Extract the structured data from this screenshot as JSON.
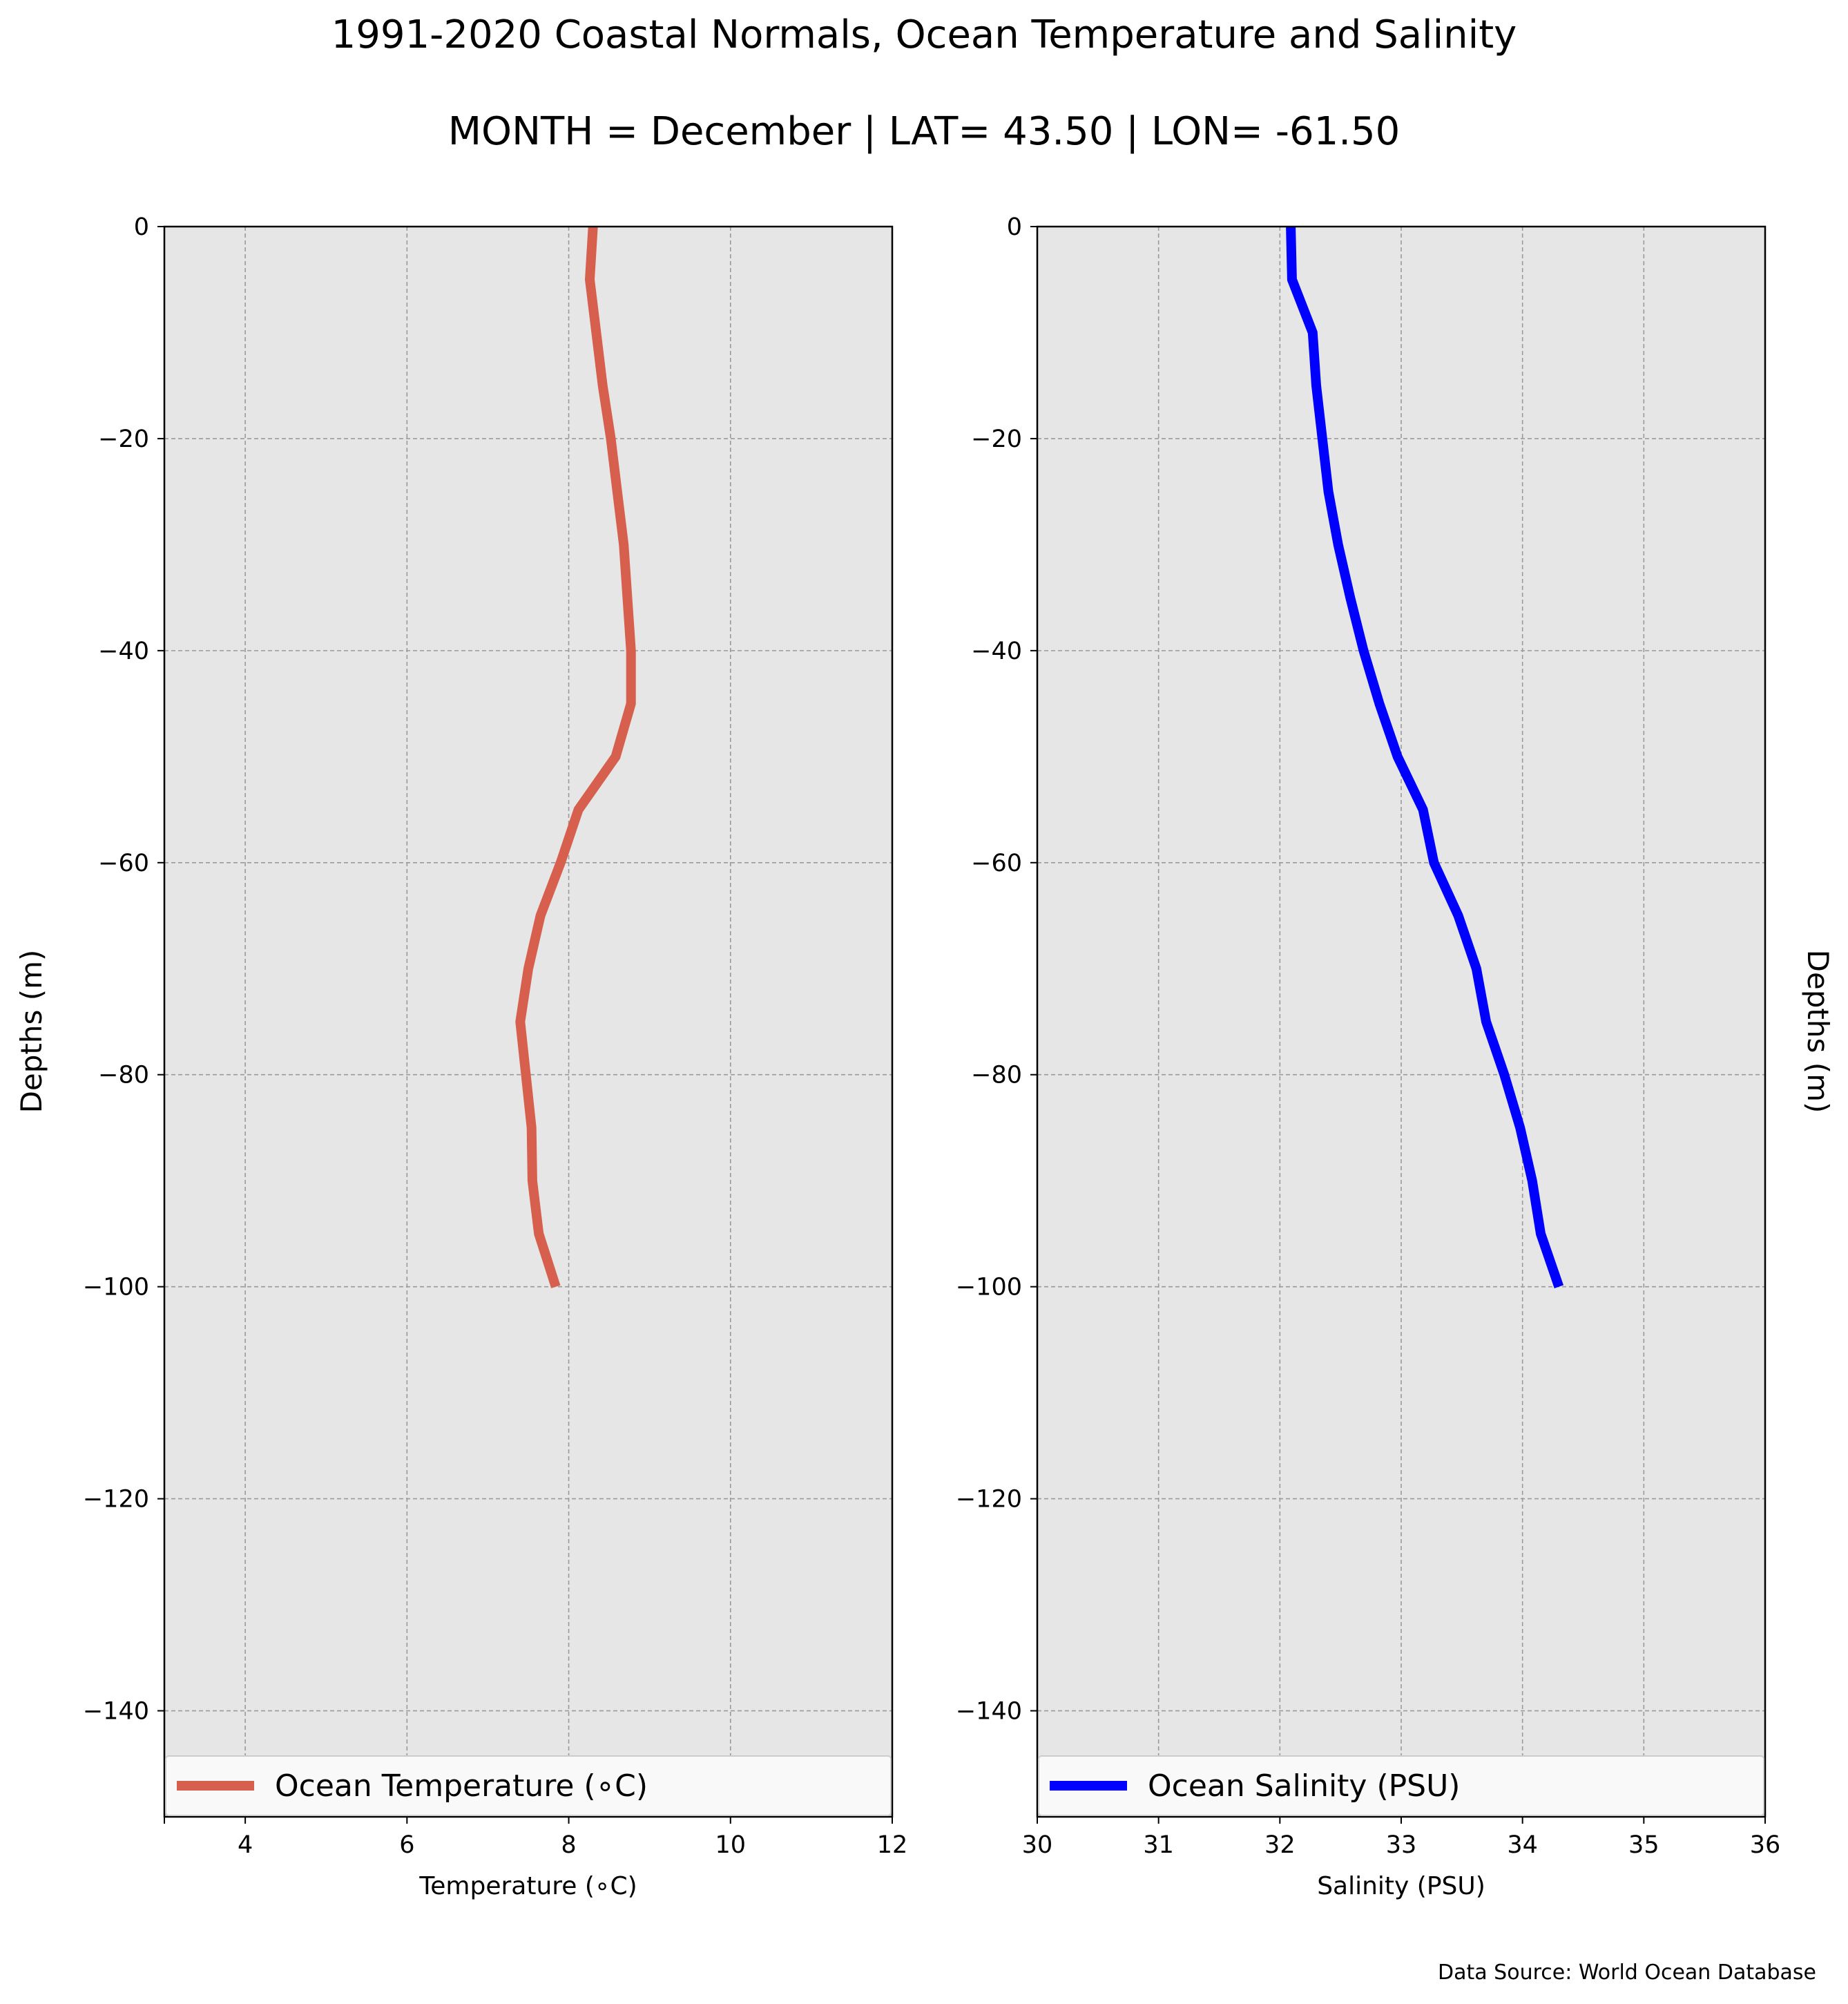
{
  "title": "1991-2020 Coastal Normals, Ocean Temperature and Salinity",
  "subtitle": "MONTH = December | LAT= 43.50 | LON= -61.50",
  "source": "Data Source: World Ocean Database",
  "chart_data": [
    {
      "type": "line",
      "xlabel": "Temperature ($^\\circ$C)",
      "xlabel_display": "Temperature (∘C)",
      "ylabel": "Depths (m)",
      "xlim": [
        3,
        12
      ],
      "ylim": [
        -150,
        0
      ],
      "xticks": [
        4,
        6,
        8,
        10,
        12
      ],
      "yticks": [
        0,
        -20,
        -40,
        -60,
        -80,
        -100,
        -120,
        -140
      ],
      "ytick_labels": [
        "0",
        "−20",
        "−40",
        "−60",
        "−80",
        "−100",
        "−120",
        "−140"
      ],
      "grid": true,
      "facecolor": "#e6e6e6",
      "legend_position": "lower center",
      "series": [
        {
          "name": "Ocean Temperature (∘C)",
          "color": "#d6604d",
          "x": [
            8.3,
            8.26,
            8.34,
            8.42,
            8.52,
            8.6,
            8.68,
            8.77,
            8.77,
            8.58,
            8.12,
            7.9,
            7.65,
            7.5,
            7.4,
            7.47,
            7.54,
            7.55,
            7.63,
            7.84
          ],
          "y": [
            0,
            -5,
            -10,
            -15,
            -20,
            -25,
            -30,
            -40,
            -45,
            -50,
            -55,
            -60,
            -65,
            -70,
            -75,
            -80,
            -85,
            -90,
            -95,
            -100
          ]
        }
      ]
    },
    {
      "type": "line",
      "xlabel": "Salinity (PSU)",
      "ylabel": "Depths (m)",
      "xlim": [
        30,
        36
      ],
      "ylim": [
        -150,
        0
      ],
      "xticks": [
        30,
        31,
        32,
        33,
        34,
        35,
        36
      ],
      "yticks": [
        0,
        -20,
        -40,
        -60,
        -80,
        -100,
        -120,
        -140
      ],
      "ytick_labels": [
        "0",
        "−20",
        "−40",
        "−60",
        "−80",
        "−100",
        "−120",
        "−140"
      ],
      "grid": true,
      "facecolor": "#e6e6e6",
      "legend_position": "lower center",
      "series": [
        {
          "name": "Ocean Salinity (PSU)",
          "color": "#0000ff",
          "x": [
            32.09,
            32.1,
            32.27,
            32.3,
            32.35,
            32.4,
            32.48,
            32.58,
            32.69,
            32.82,
            32.97,
            33.18,
            33.27,
            33.47,
            33.62,
            33.7,
            33.85,
            33.98,
            34.08,
            34.15,
            34.3
          ],
          "y": [
            0,
            -5,
            -10,
            -15,
            -20,
            -25,
            -30,
            -35,
            -40,
            -45,
            -50,
            -55,
            -60,
            -65,
            -70,
            -75,
            -80,
            -85,
            -90,
            -95,
            -100
          ]
        }
      ]
    }
  ]
}
